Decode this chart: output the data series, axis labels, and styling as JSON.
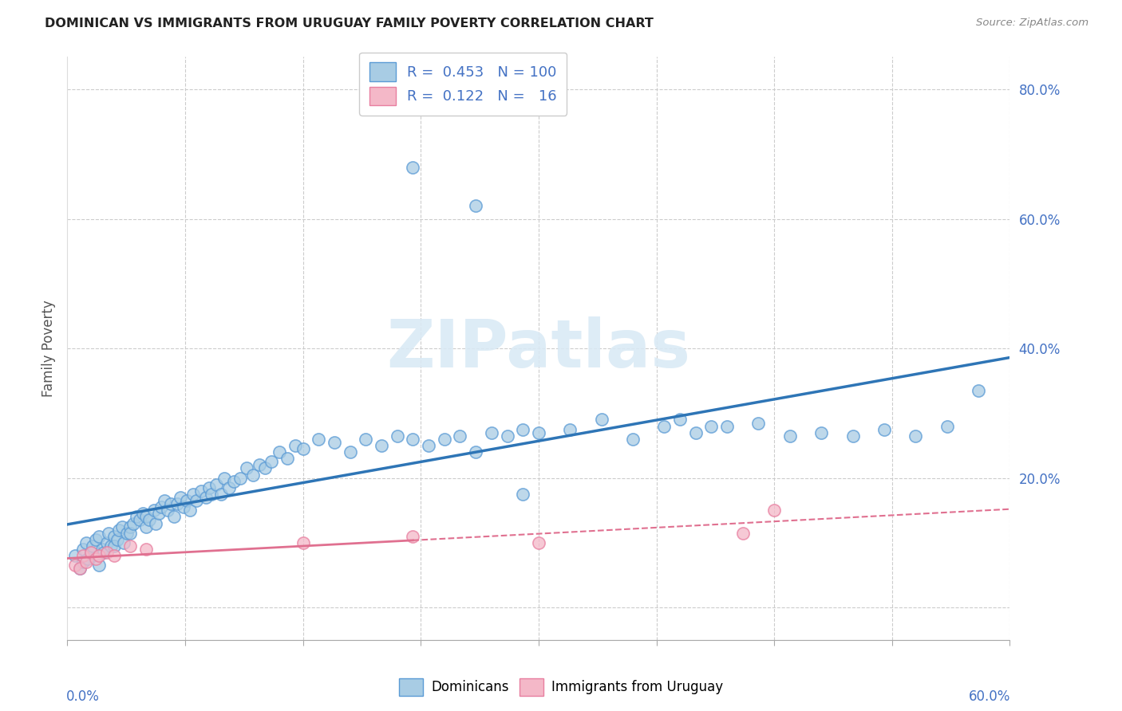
{
  "title": "DOMINICAN VS IMMIGRANTS FROM URUGUAY FAMILY POVERTY CORRELATION CHART",
  "source": "Source: ZipAtlas.com",
  "ylabel": "Family Poverty",
  "legend_label1": "Dominicans",
  "legend_label2": "Immigrants from Uruguay",
  "R1": 0.453,
  "N1": 100,
  "R2": 0.122,
  "N2": 16,
  "color_blue_fill": "#a8cce4",
  "color_blue_edge": "#5b9bd5",
  "color_pink_fill": "#f4b8c8",
  "color_pink_edge": "#e87fa0",
  "color_blue_line": "#2e75b6",
  "color_pink_line": "#e07090",
  "color_axis_text": "#4472c4",
  "color_grid": "#cccccc",
  "watermark_color": "#daeaf5",
  "blue_x": [
    0.005,
    0.008,
    0.01,
    0.01,
    0.012,
    0.013,
    0.015,
    0.016,
    0.018,
    0.02,
    0.02,
    0.022,
    0.023,
    0.025,
    0.026,
    0.028,
    0.03,
    0.03,
    0.032,
    0.033,
    0.035,
    0.036,
    0.038,
    0.04,
    0.04,
    0.042,
    0.044,
    0.046,
    0.048,
    0.05,
    0.05,
    0.052,
    0.055,
    0.056,
    0.058,
    0.06,
    0.062,
    0.064,
    0.066,
    0.068,
    0.07,
    0.072,
    0.074,
    0.076,
    0.078,
    0.08,
    0.082,
    0.085,
    0.088,
    0.09,
    0.092,
    0.095,
    0.098,
    0.1,
    0.103,
    0.106,
    0.11,
    0.114,
    0.118,
    0.122,
    0.126,
    0.13,
    0.135,
    0.14,
    0.145,
    0.15,
    0.16,
    0.17,
    0.18,
    0.19,
    0.2,
    0.21,
    0.22,
    0.23,
    0.24,
    0.25,
    0.26,
    0.27,
    0.28,
    0.29,
    0.3,
    0.32,
    0.34,
    0.36,
    0.38,
    0.4,
    0.42,
    0.44,
    0.46,
    0.48,
    0.5,
    0.52,
    0.54,
    0.56,
    0.58,
    0.39,
    0.41,
    0.29,
    0.26,
    0.22
  ],
  "blue_y": [
    0.08,
    0.06,
    0.09,
    0.07,
    0.1,
    0.075,
    0.085,
    0.095,
    0.105,
    0.065,
    0.11,
    0.09,
    0.085,
    0.1,
    0.115,
    0.095,
    0.11,
    0.095,
    0.105,
    0.12,
    0.125,
    0.1,
    0.115,
    0.125,
    0.115,
    0.13,
    0.14,
    0.135,
    0.145,
    0.125,
    0.14,
    0.135,
    0.15,
    0.13,
    0.145,
    0.155,
    0.165,
    0.15,
    0.16,
    0.14,
    0.16,
    0.17,
    0.155,
    0.165,
    0.15,
    0.175,
    0.165,
    0.18,
    0.17,
    0.185,
    0.175,
    0.19,
    0.175,
    0.2,
    0.185,
    0.195,
    0.2,
    0.215,
    0.205,
    0.22,
    0.215,
    0.225,
    0.24,
    0.23,
    0.25,
    0.245,
    0.26,
    0.255,
    0.24,
    0.26,
    0.25,
    0.265,
    0.26,
    0.25,
    0.26,
    0.265,
    0.24,
    0.27,
    0.265,
    0.275,
    0.27,
    0.275,
    0.29,
    0.26,
    0.28,
    0.27,
    0.28,
    0.285,
    0.265,
    0.27,
    0.265,
    0.275,
    0.265,
    0.28,
    0.335,
    0.29,
    0.28,
    0.175,
    0.62,
    0.68
  ],
  "pink_x": [
    0.005,
    0.008,
    0.01,
    0.012,
    0.015,
    0.018,
    0.02,
    0.025,
    0.03,
    0.04,
    0.05,
    0.15,
    0.22,
    0.43,
    0.45,
    0.3
  ],
  "pink_y": [
    0.065,
    0.06,
    0.08,
    0.07,
    0.085,
    0.075,
    0.08,
    0.085,
    0.08,
    0.095,
    0.09,
    0.1,
    0.11,
    0.115,
    0.15,
    0.1
  ]
}
